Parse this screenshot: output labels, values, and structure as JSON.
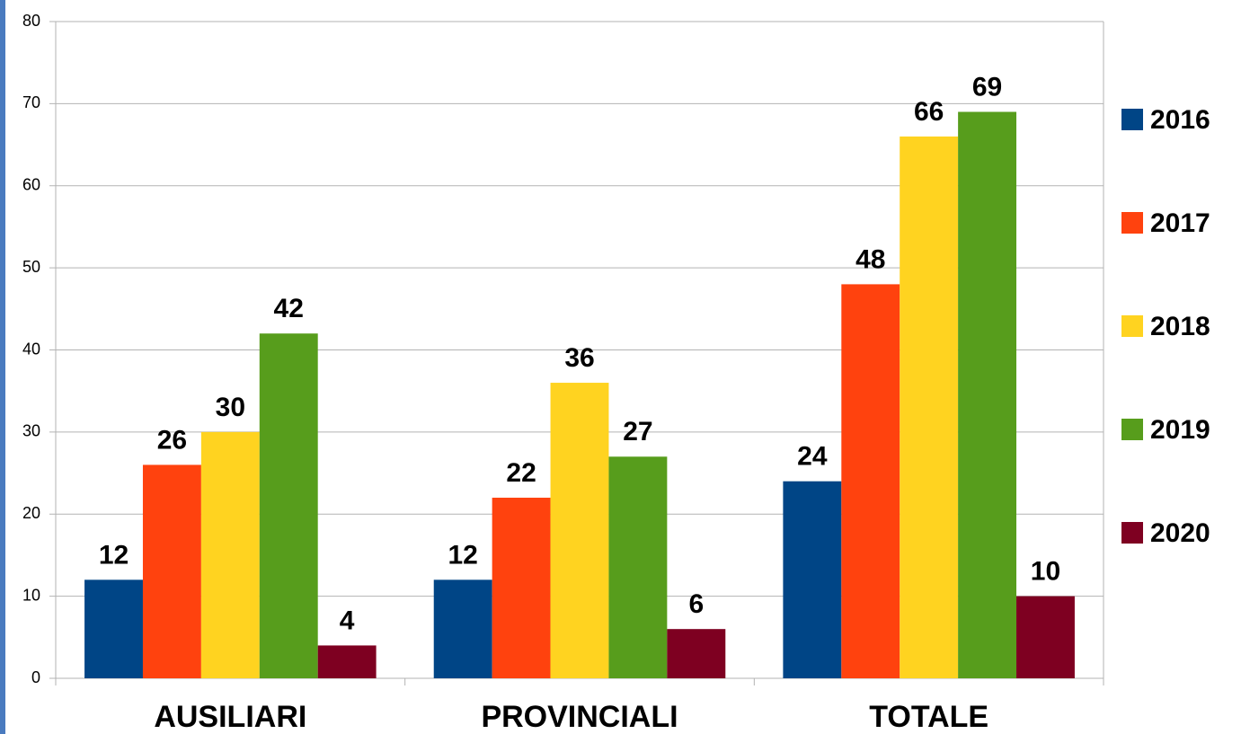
{
  "chart_data": {
    "type": "bar",
    "categories": [
      "AUSILIARI",
      "PROVINCIALI",
      "TOTALE"
    ],
    "series": [
      {
        "name": "2016",
        "color": "#004586",
        "values": [
          12,
          12,
          24
        ]
      },
      {
        "name": "2017",
        "color": "#ff420e",
        "values": [
          26,
          22,
          48
        ]
      },
      {
        "name": "2018",
        "color": "#ffd320",
        "values": [
          30,
          36,
          66
        ]
      },
      {
        "name": "2019",
        "color": "#579d1c",
        "values": [
          42,
          27,
          69
        ]
      },
      {
        "name": "2020",
        "color": "#7e0021",
        "values": [
          4,
          6,
          10
        ]
      }
    ],
    "ylim": [
      0,
      80
    ],
    "yticks": [
      0,
      10,
      20,
      30,
      40,
      50,
      60,
      70,
      80
    ],
    "grid": true,
    "legend": "right"
  }
}
